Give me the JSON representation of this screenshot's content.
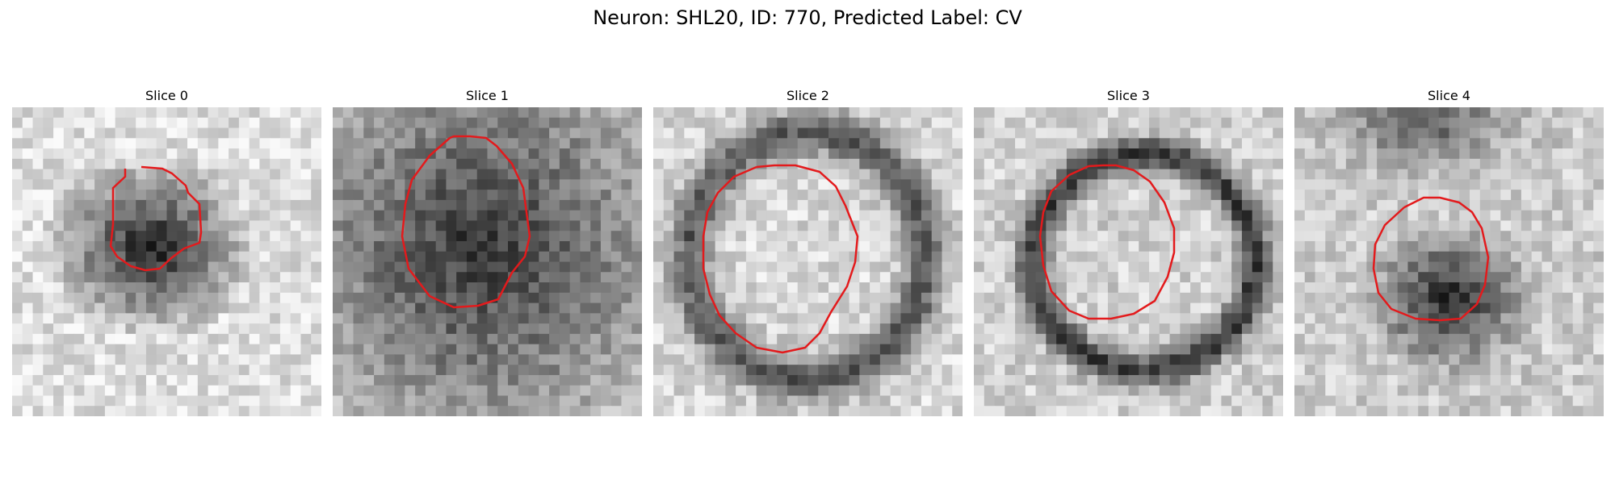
{
  "figure": {
    "title": "Neuron: SHL20, ID: 770, Predicted Label: CV",
    "panel_titles": [
      "Slice 0",
      "Slice 1",
      "Slice 2",
      "Slice 3",
      "Slice 4"
    ],
    "contour_color": "#e31a1c",
    "colormap": "grayscale"
  }
}
